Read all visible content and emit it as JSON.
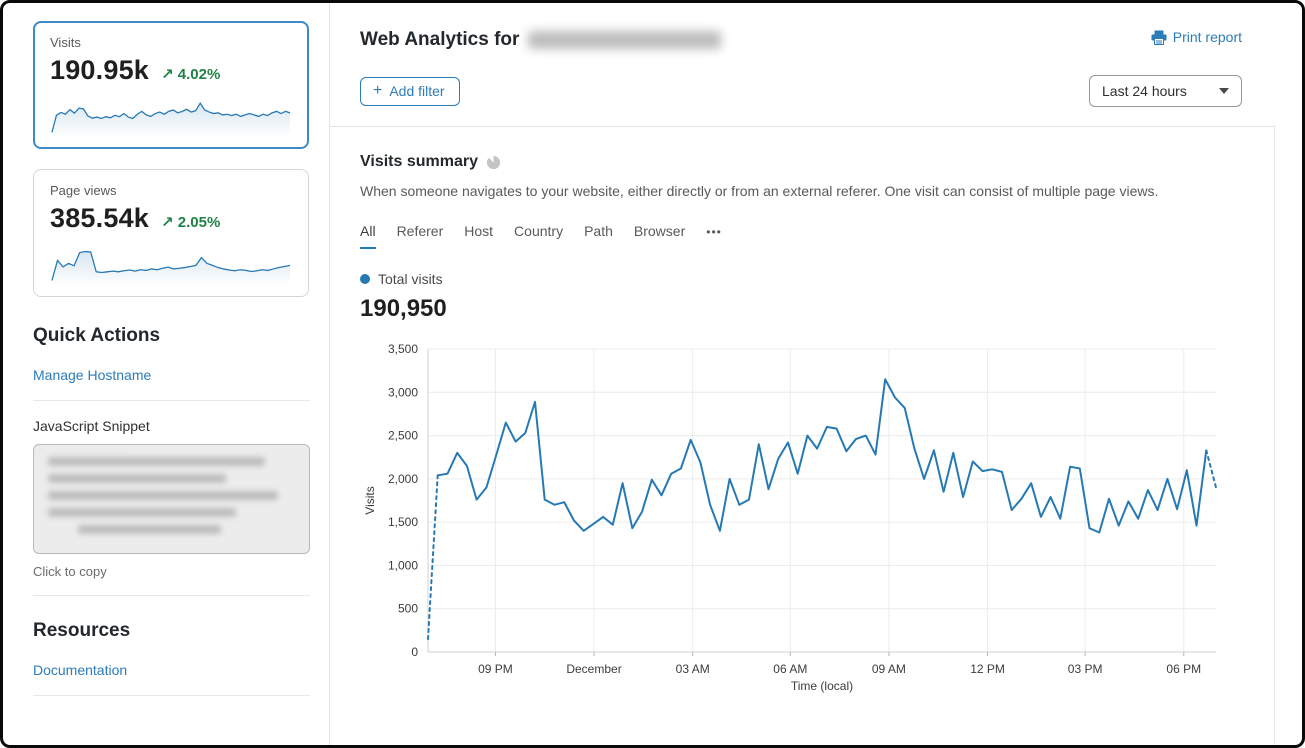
{
  "sidebar": {
    "stat_cards": [
      {
        "label": "Visits",
        "value": "190.95k",
        "delta_arrow": "↗",
        "delta": "4.02%",
        "selected": true,
        "sparkline": [
          4,
          52,
          60,
          55,
          68,
          58,
          72,
          70,
          50,
          44,
          47,
          43,
          48,
          45,
          52,
          48,
          57,
          47,
          43,
          55,
          63,
          53,
          49,
          57,
          61,
          55,
          63,
          67,
          59,
          63,
          69,
          61,
          65,
          86,
          67,
          61,
          57,
          59,
          53,
          55,
          51,
          55,
          49,
          53,
          57,
          53,
          49,
          55,
          51,
          59,
          63,
          57,
          63,
          59
        ]
      },
      {
        "label": "Page views",
        "value": "385.54k",
        "delta_arrow": "↗",
        "delta": "2.05%",
        "selected": false,
        "sparkline": [
          4,
          60,
          42,
          52,
          45,
          82,
          85,
          84,
          28,
          26,
          28,
          30,
          28,
          31,
          33,
          30,
          34,
          32,
          36,
          34,
          38,
          41,
          36,
          38,
          40,
          43,
          46,
          68,
          52,
          46,
          40,
          36,
          33,
          31,
          34,
          32,
          29,
          31,
          34,
          32,
          36,
          40,
          43,
          46
        ]
      }
    ],
    "quick_actions": {
      "heading": "Quick Actions",
      "manage_hostname_label": "Manage Hostname",
      "snippet_label": "JavaScript Snippet",
      "snippet_hint": "Click to copy"
    },
    "resources": {
      "heading": "Resources",
      "documentation_label": "Documentation"
    }
  },
  "header": {
    "title_prefix": "Web Analytics for",
    "print_label": "Print report",
    "add_filter_plus": "+",
    "add_filter_label": "Add filter",
    "time_range": "Last 24 hours"
  },
  "summary": {
    "heading": "Visits summary",
    "description": "When someone navigates to your website, either directly or from an external referer. One visit can consist of multiple page views.",
    "tabs": [
      "All",
      "Referer",
      "Host",
      "Country",
      "Path",
      "Browser"
    ],
    "more_label": "•••",
    "active_tab": "All",
    "legend_label": "Total visits",
    "total_value": "190,950"
  },
  "colors": {
    "line_blue": "#2779b4",
    "link_blue": "#2c7cb9",
    "positive_green": "#208346",
    "selected_card_border": "#3d8ac6",
    "gridline": "#ececec",
    "axis_line": "#d0d0d0"
  },
  "chart_data": {
    "type": "line",
    "title": "Visits summary",
    "series_name": "Total visits",
    "total_label": "190,950",
    "ylabel": "Visits",
    "xlabel": "Time (local)",
    "ylim": [
      0,
      3500
    ],
    "y_ticks": [
      0,
      500,
      1000,
      1500,
      2000,
      2500,
      3000,
      3500
    ],
    "x_tick_labels": [
      "09 PM",
      "December",
      "03 AM",
      "06 AM",
      "09 AM",
      "12 PM",
      "03 PM",
      "06 PM"
    ],
    "x_tick_positions": [
      0.0856,
      0.2107,
      0.3359,
      0.4598,
      0.5849,
      0.7101,
      0.8339,
      0.9591
    ],
    "grid": true,
    "legend_position": "top-left",
    "dashed_head_segments": 1,
    "dashed_tail_segments": 1,
    "values": [
      150,
      2040,
      2060,
      2300,
      2150,
      1760,
      1900,
      2270,
      2650,
      2430,
      2530,
      2890,
      1760,
      1700,
      1730,
      1520,
      1400,
      1480,
      1560,
      1470,
      1950,
      1430,
      1620,
      1990,
      1810,
      2060,
      2120,
      2450,
      2190,
      1700,
      1400,
      2000,
      1700,
      1760,
      2400,
      1880,
      2230,
      2420,
      2060,
      2500,
      2350,
      2600,
      2580,
      2320,
      2460,
      2500,
      2280,
      3150,
      2940,
      2820,
      2350,
      2000,
      2330,
      1850,
      2300,
      1790,
      2200,
      2090,
      2110,
      2080,
      1640,
      1770,
      1950,
      1560,
      1790,
      1540,
      2140,
      2120,
      1430,
      1380,
      1770,
      1460,
      1740,
      1540,
      1870,
      1640,
      2000,
      1650,
      2100,
      1460,
      2330,
      1900
    ]
  }
}
